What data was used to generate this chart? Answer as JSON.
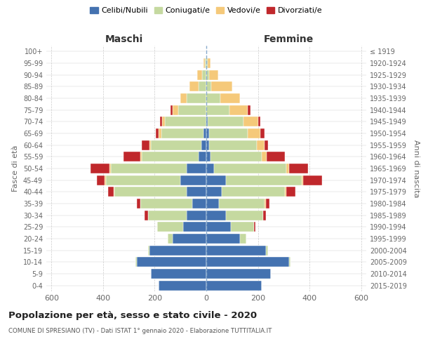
{
  "age_groups": [
    "0-4",
    "5-9",
    "10-14",
    "15-19",
    "20-24",
    "25-29",
    "30-34",
    "35-39",
    "40-44",
    "45-49",
    "50-54",
    "55-59",
    "60-64",
    "65-69",
    "70-74",
    "75-79",
    "80-84",
    "85-89",
    "90-94",
    "95-99",
    "100+"
  ],
  "birth_years": [
    "2015-2019",
    "2010-2014",
    "2005-2009",
    "2000-2004",
    "1995-1999",
    "1990-1994",
    "1985-1989",
    "1980-1984",
    "1975-1979",
    "1970-1974",
    "1965-1969",
    "1960-1964",
    "1955-1959",
    "1950-1954",
    "1945-1949",
    "1940-1944",
    "1935-1939",
    "1930-1934",
    "1925-1929",
    "1920-1924",
    "≤ 1919"
  ],
  "male": {
    "celibi": [
      185,
      215,
      270,
      220,
      130,
      90,
      75,
      55,
      75,
      100,
      75,
      30,
      20,
      10,
      0,
      0,
      0,
      0,
      0,
      0,
      0
    ],
    "coniugati": [
      0,
      0,
      5,
      5,
      20,
      100,
      150,
      200,
      280,
      290,
      295,
      220,
      195,
      165,
      160,
      110,
      75,
      30,
      15,
      5,
      0
    ],
    "vedovi": [
      0,
      0,
      0,
      0,
      0,
      0,
      0,
      0,
      5,
      5,
      5,
      5,
      5,
      10,
      10,
      20,
      25,
      35,
      20,
      5,
      0
    ],
    "divorziati": [
      0,
      0,
      0,
      0,
      0,
      0,
      15,
      15,
      20,
      30,
      75,
      65,
      30,
      10,
      10,
      10,
      0,
      0,
      0,
      0,
      0
    ]
  },
  "female": {
    "nubili": [
      215,
      250,
      320,
      230,
      130,
      95,
      75,
      50,
      60,
      75,
      30,
      15,
      10,
      10,
      5,
      0,
      0,
      0,
      0,
      0,
      0
    ],
    "coniugate": [
      0,
      0,
      5,
      10,
      25,
      90,
      145,
      175,
      245,
      295,
      280,
      200,
      185,
      150,
      140,
      90,
      55,
      20,
      10,
      5,
      0
    ],
    "vedove": [
      0,
      0,
      0,
      0,
      0,
      0,
      0,
      5,
      5,
      5,
      10,
      20,
      30,
      50,
      55,
      70,
      75,
      80,
      35,
      10,
      0
    ],
    "divorziate": [
      0,
      0,
      0,
      0,
      0,
      5,
      10,
      15,
      35,
      75,
      75,
      70,
      15,
      15,
      10,
      10,
      0,
      0,
      0,
      0,
      0
    ]
  },
  "colors": {
    "celibi": "#4472b0",
    "coniugati": "#c5d9a0",
    "vedovi": "#f5c97a",
    "divorziati": "#c0282c"
  },
  "xlim": 620,
  "title": "Popolazione per età, sesso e stato civile - 2020",
  "subtitle": "COMUNE DI SPRESIANO (TV) - Dati ISTAT 1° gennaio 2020 - Elaborazione TUTTITALIA.IT",
  "ylabel_left": "Fasce di età",
  "ylabel_right": "Anni di nascita",
  "xlabel_maschi": "Maschi",
  "xlabel_femmine": "Femmine",
  "bg_color": "#ffffff",
  "grid_color": "#cccccc",
  "xticks": [
    -600,
    -400,
    -200,
    0,
    200,
    400,
    600
  ]
}
